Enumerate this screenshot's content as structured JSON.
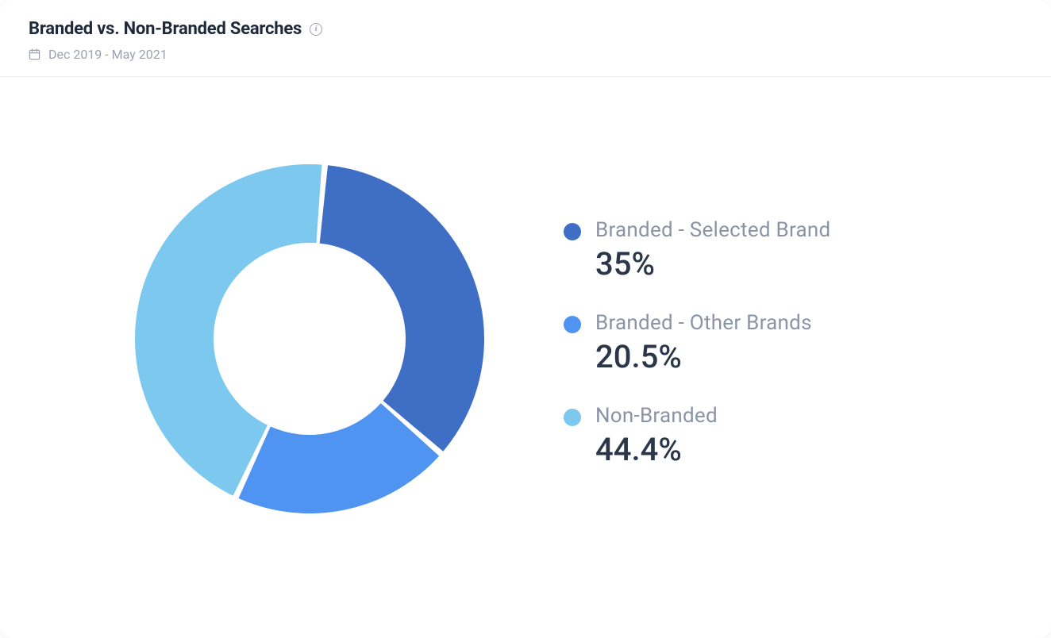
{
  "header": {
    "title": "Branded vs. Non-Branded Searches",
    "date_range": "Dec 2019 - May 2021"
  },
  "chart": {
    "type": "donut",
    "background_color": "#ffffff",
    "gap_color": "#ffffff",
    "gap_deg": 2,
    "inner_radius_ratio": 0.55,
    "start_angle_deg": 5,
    "direction": "clockwise",
    "slices": [
      {
        "label": "Branded - Selected Brand",
        "value": 35.0,
        "value_display": "35%",
        "color": "#3e6fc4"
      },
      {
        "label": "Branded - Other Brands",
        "value": 20.5,
        "value_display": "20.5%",
        "color": "#4f94f0"
      },
      {
        "label": "Non-Branded",
        "value": 44.4,
        "value_display": "44.4%",
        "color": "#7cc8ef"
      }
    ]
  },
  "legend": {
    "label_color": "#8a94a6",
    "value_color": "#2b3648",
    "label_fontsize": 26,
    "value_fontsize": 40
  },
  "colors": {
    "title": "#1e2a3b",
    "muted": "#9aa3b2",
    "divider": "#eef0f4"
  }
}
